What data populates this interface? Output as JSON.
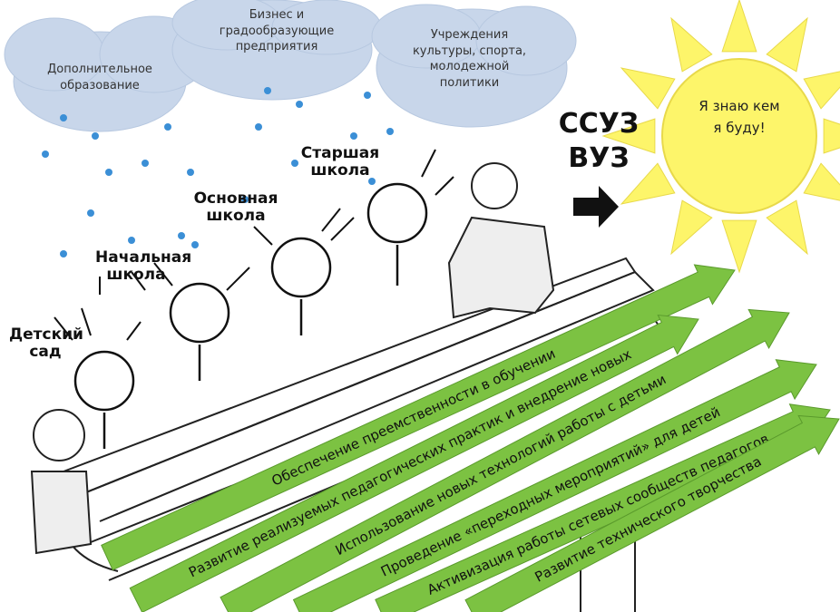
{
  "clouds": [
    "Дополнительное образование",
    "Бизнес и градообразующие предприятия",
    "Учреждения культуры, спорта, молодежной политики"
  ],
  "stages": [
    "Детский сад",
    "Начальная школа",
    "Основная школа",
    "Старшая школа"
  ],
  "next": [
    "ССУЗ",
    "ВУЗ"
  ],
  "sun": "Я знаю кем я буду!",
  "arrows": [
    "Обеспечение преемственности в обучении",
    "Развитие реализуемых педагогических практик и внедрение новых",
    "Использование  новых технологий работы с детьми",
    "Проведение «переходных мероприятий» для детей",
    "Активизация  работы сетевых сообществ педагогов",
    "Развитие  технического творчества"
  ]
}
